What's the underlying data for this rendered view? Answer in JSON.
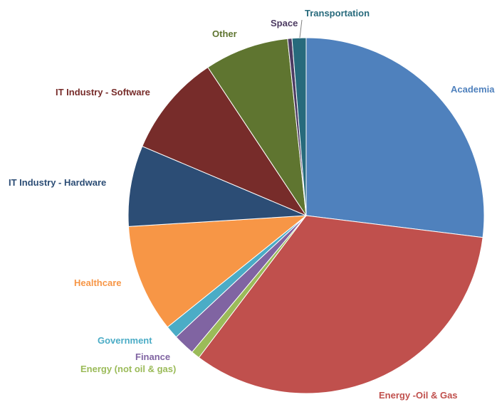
{
  "chart_data": {
    "type": "pie",
    "title": "",
    "slices": [
      {
        "label": "Academia",
        "value": 27.5,
        "color": "#4F81BD"
      },
      {
        "label": "Energy -Oil & Gas",
        "value": 34.0,
        "color": "#C0504D"
      },
      {
        "label": "Energy (not oil & gas)",
        "value": 0.8,
        "color": "#9BBB59"
      },
      {
        "label": "Finance",
        "value": 2.0,
        "color": "#8064A2"
      },
      {
        "label": "Government",
        "value": 1.2,
        "color": "#4BACC6"
      },
      {
        "label": "Healthcare",
        "value": 10.0,
        "color": "#F79646"
      },
      {
        "label": "IT Industry - Hardware",
        "value": 7.5,
        "color": "#2C4D75"
      },
      {
        "label": "IT Industry - Software",
        "value": 9.5,
        "color": "#772C2A"
      },
      {
        "label": "Other",
        "value": 7.8,
        "color": "#5F7530"
      },
      {
        "label": "Space",
        "value": 0.4,
        "color": "#4D3B62"
      },
      {
        "label": "Transportation",
        "value": 1.3,
        "color": "#276A7C"
      }
    ]
  }
}
